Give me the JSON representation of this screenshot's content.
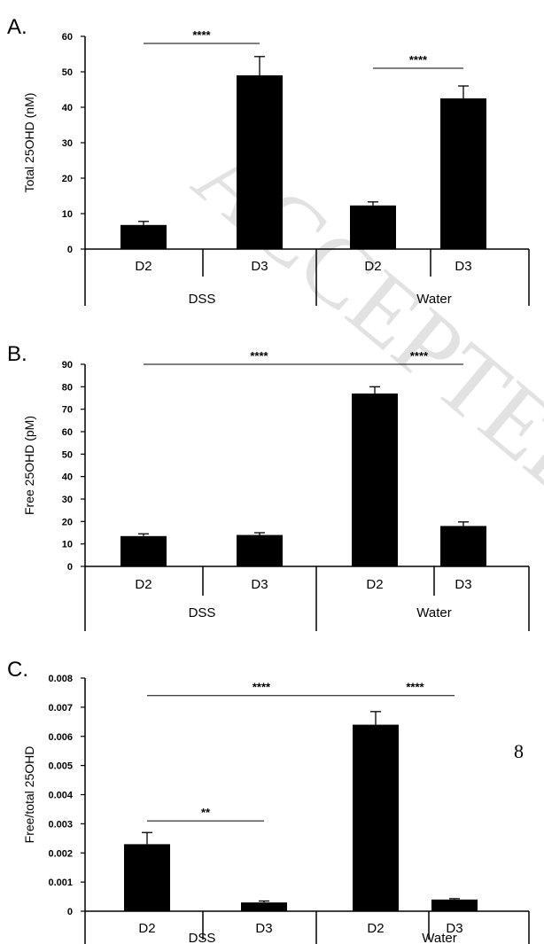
{
  "watermark": "ACCEPTED MANUSCRIPT",
  "page_number": "8",
  "chart_data": [
    {
      "panel": "A.",
      "type": "bar",
      "ylabel": "Total 25OHD (nM)",
      "ylim": [
        0,
        60
      ],
      "yticks": [
        "0",
        "10",
        "20",
        "30",
        "40",
        "50",
        "60"
      ],
      "groups": [
        "DSS",
        "Water"
      ],
      "categories": [
        "D2",
        "D3",
        "D2",
        "D3"
      ],
      "values": [
        6.8,
        49.0,
        12.3,
        42.5
      ],
      "errors": [
        1.0,
        5.3,
        1.0,
        3.5
      ],
      "significance": [
        {
          "from": 1,
          "to": 2,
          "label": "****",
          "y": 58
        },
        {
          "from": 3,
          "to": 4,
          "label": "****",
          "y": 51
        }
      ],
      "grid": false,
      "color": "#000000"
    },
    {
      "panel": "B.",
      "type": "bar",
      "ylabel": "Free 25OHD (pM)",
      "ylim": [
        0,
        90
      ],
      "yticks": [
        "0",
        "10",
        "20",
        "30",
        "40",
        "50",
        "60",
        "70",
        "80",
        "90"
      ],
      "groups": [
        "DSS",
        "Water"
      ],
      "categories": [
        "D2",
        "D3",
        "D2",
        "D3"
      ],
      "values": [
        13.5,
        14.0,
        77.0,
        18.0
      ],
      "errors": [
        1.0,
        1.0,
        3.0,
        1.8
      ],
      "significance": [
        {
          "from": 1,
          "to": 3,
          "label": "****",
          "y": 90
        },
        {
          "from": 3,
          "to": 4,
          "label": "****",
          "y": 90
        }
      ],
      "grid": false,
      "color": "#000000"
    },
    {
      "panel": "C.",
      "type": "bar",
      "ylabel": "Free/total 25OHD",
      "ylim": [
        0,
        0.008
      ],
      "yticks": [
        "0",
        "0.001",
        "0.002",
        "0.003",
        "0.004",
        "0.005",
        "0.006",
        "0.007",
        "0.008"
      ],
      "groups": [
        "DSS",
        "Water"
      ],
      "categories": [
        "D2",
        "D3",
        "D2",
        "D3"
      ],
      "values": [
        0.0023,
        0.0003,
        0.0064,
        0.0004
      ],
      "errors": [
        0.0004,
        5e-05,
        0.00045,
        3e-05
      ],
      "significance": [
        {
          "from": 1,
          "to": 3,
          "label": "****",
          "y": 0.0074
        },
        {
          "from": 3,
          "to": 4,
          "label": "****",
          "y": 0.0074
        },
        {
          "from": 1,
          "to": 2,
          "label": "**",
          "y": 0.0031
        }
      ],
      "grid": false,
      "color": "#000000"
    }
  ]
}
